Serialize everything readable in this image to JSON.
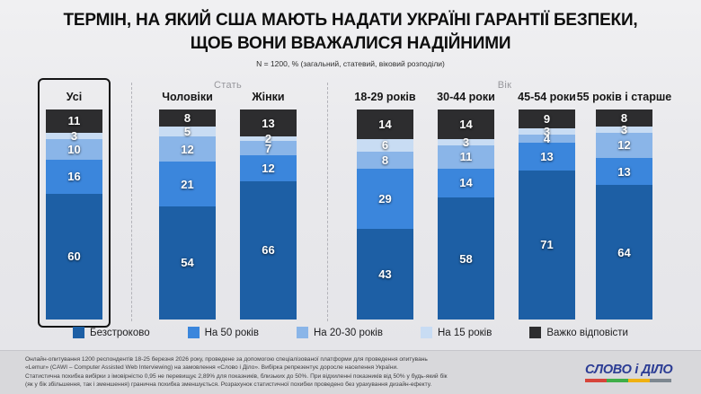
{
  "header": {
    "title_line1": "ТЕРМІН, НА ЯКИЙ США МАЮТЬ НАДАТИ УКРАЇНІ ГАРАНТІЇ БЕЗПЕКИ,",
    "title_line2": "ЩОБ ВОНИ ВВАЖАЛИСЯ НАДІЙНИМИ",
    "subtitle": "N = 1200, % (загальний, статевий, віковий розподіли)"
  },
  "chart_data": {
    "type": "bar",
    "stacked": true,
    "unit": "%",
    "ylim": [
      0,
      100
    ],
    "legend_position": "bottom",
    "categories": [
      "Усі",
      "Чоловіки",
      "Жінки",
      "18-29 років",
      "30-44 роки",
      "45-54 роки",
      "55 років і старше"
    ],
    "groups": [
      {
        "label": "",
        "highlight": true,
        "category_indexes": [
          0
        ]
      },
      {
        "label": "Стать",
        "highlight": false,
        "category_indexes": [
          1,
          2
        ]
      },
      {
        "label": "Вік",
        "highlight": false,
        "category_indexes": [
          3,
          4,
          5,
          6
        ]
      }
    ],
    "series": [
      {
        "name": "Безстроково",
        "color": "#1d5fa5",
        "values": [
          60,
          54,
          66,
          43,
          58,
          71,
          64
        ]
      },
      {
        "name": "На 50 років",
        "color": "#3b86dc",
        "values": [
          16,
          21,
          12,
          29,
          14,
          13,
          13
        ]
      },
      {
        "name": "На 20-30 років",
        "color": "#8ab5e8",
        "values": [
          10,
          12,
          7,
          8,
          11,
          4,
          12
        ]
      },
      {
        "name": "На 15 років",
        "color": "#c8dcf3",
        "values": [
          3,
          5,
          2,
          6,
          3,
          3,
          3
        ]
      },
      {
        "name": "Важко відповісти",
        "color": "#2d2d2f",
        "values": [
          11,
          8,
          13,
          14,
          14,
          9,
          8
        ]
      }
    ]
  },
  "footer": {
    "lines": [
      "Онлайн-опитування 1200 респондентів 18-25 березня 2026 року, проведене за допомогою спеціалізованої платформи для проведення опитувань",
      "«Lemur» (CAWI – Computer Assisted Web Interviewing) на замовлення «Слово і Діло». Вибірка репрезентує доросле населення України.",
      "Статистична похибка вибірки з імовірністю 0,95 не перевищує 2,89% для показників, близьких до 50%. При відхиленні показників від 50% у будь-який бік",
      "(як у бік збільшення, так і зменшення) гранична похибка зменшується. Розрахунок статистичної похибки проведено без урахування дизайн-ефекту."
    ],
    "logo": {
      "text": "СЛОВО і ДІЛО",
      "underline_colors": [
        "#d6453a",
        "#3fae49",
        "#efb111",
        "#7d8790"
      ]
    }
  }
}
